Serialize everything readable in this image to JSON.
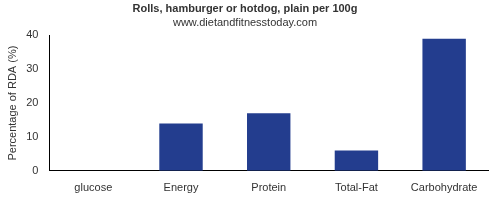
{
  "chart_data": {
    "type": "bar",
    "title": "Rolls, hamburger or hotdog, plain per 100g",
    "subtitle": "www.dietandfitnesstoday.com",
    "y_label": "Percentage of RDA (%)",
    "categories": [
      "glucose",
      "Energy",
      "Protein",
      "Total-Fat",
      "Carbohydrate"
    ],
    "values": [
      0,
      14,
      17,
      6,
      39
    ],
    "color": "#233d8e",
    "ylim": [
      0,
      40
    ],
    "yticks": [
      0,
      10,
      20,
      30,
      40
    ],
    "grid": false
  }
}
